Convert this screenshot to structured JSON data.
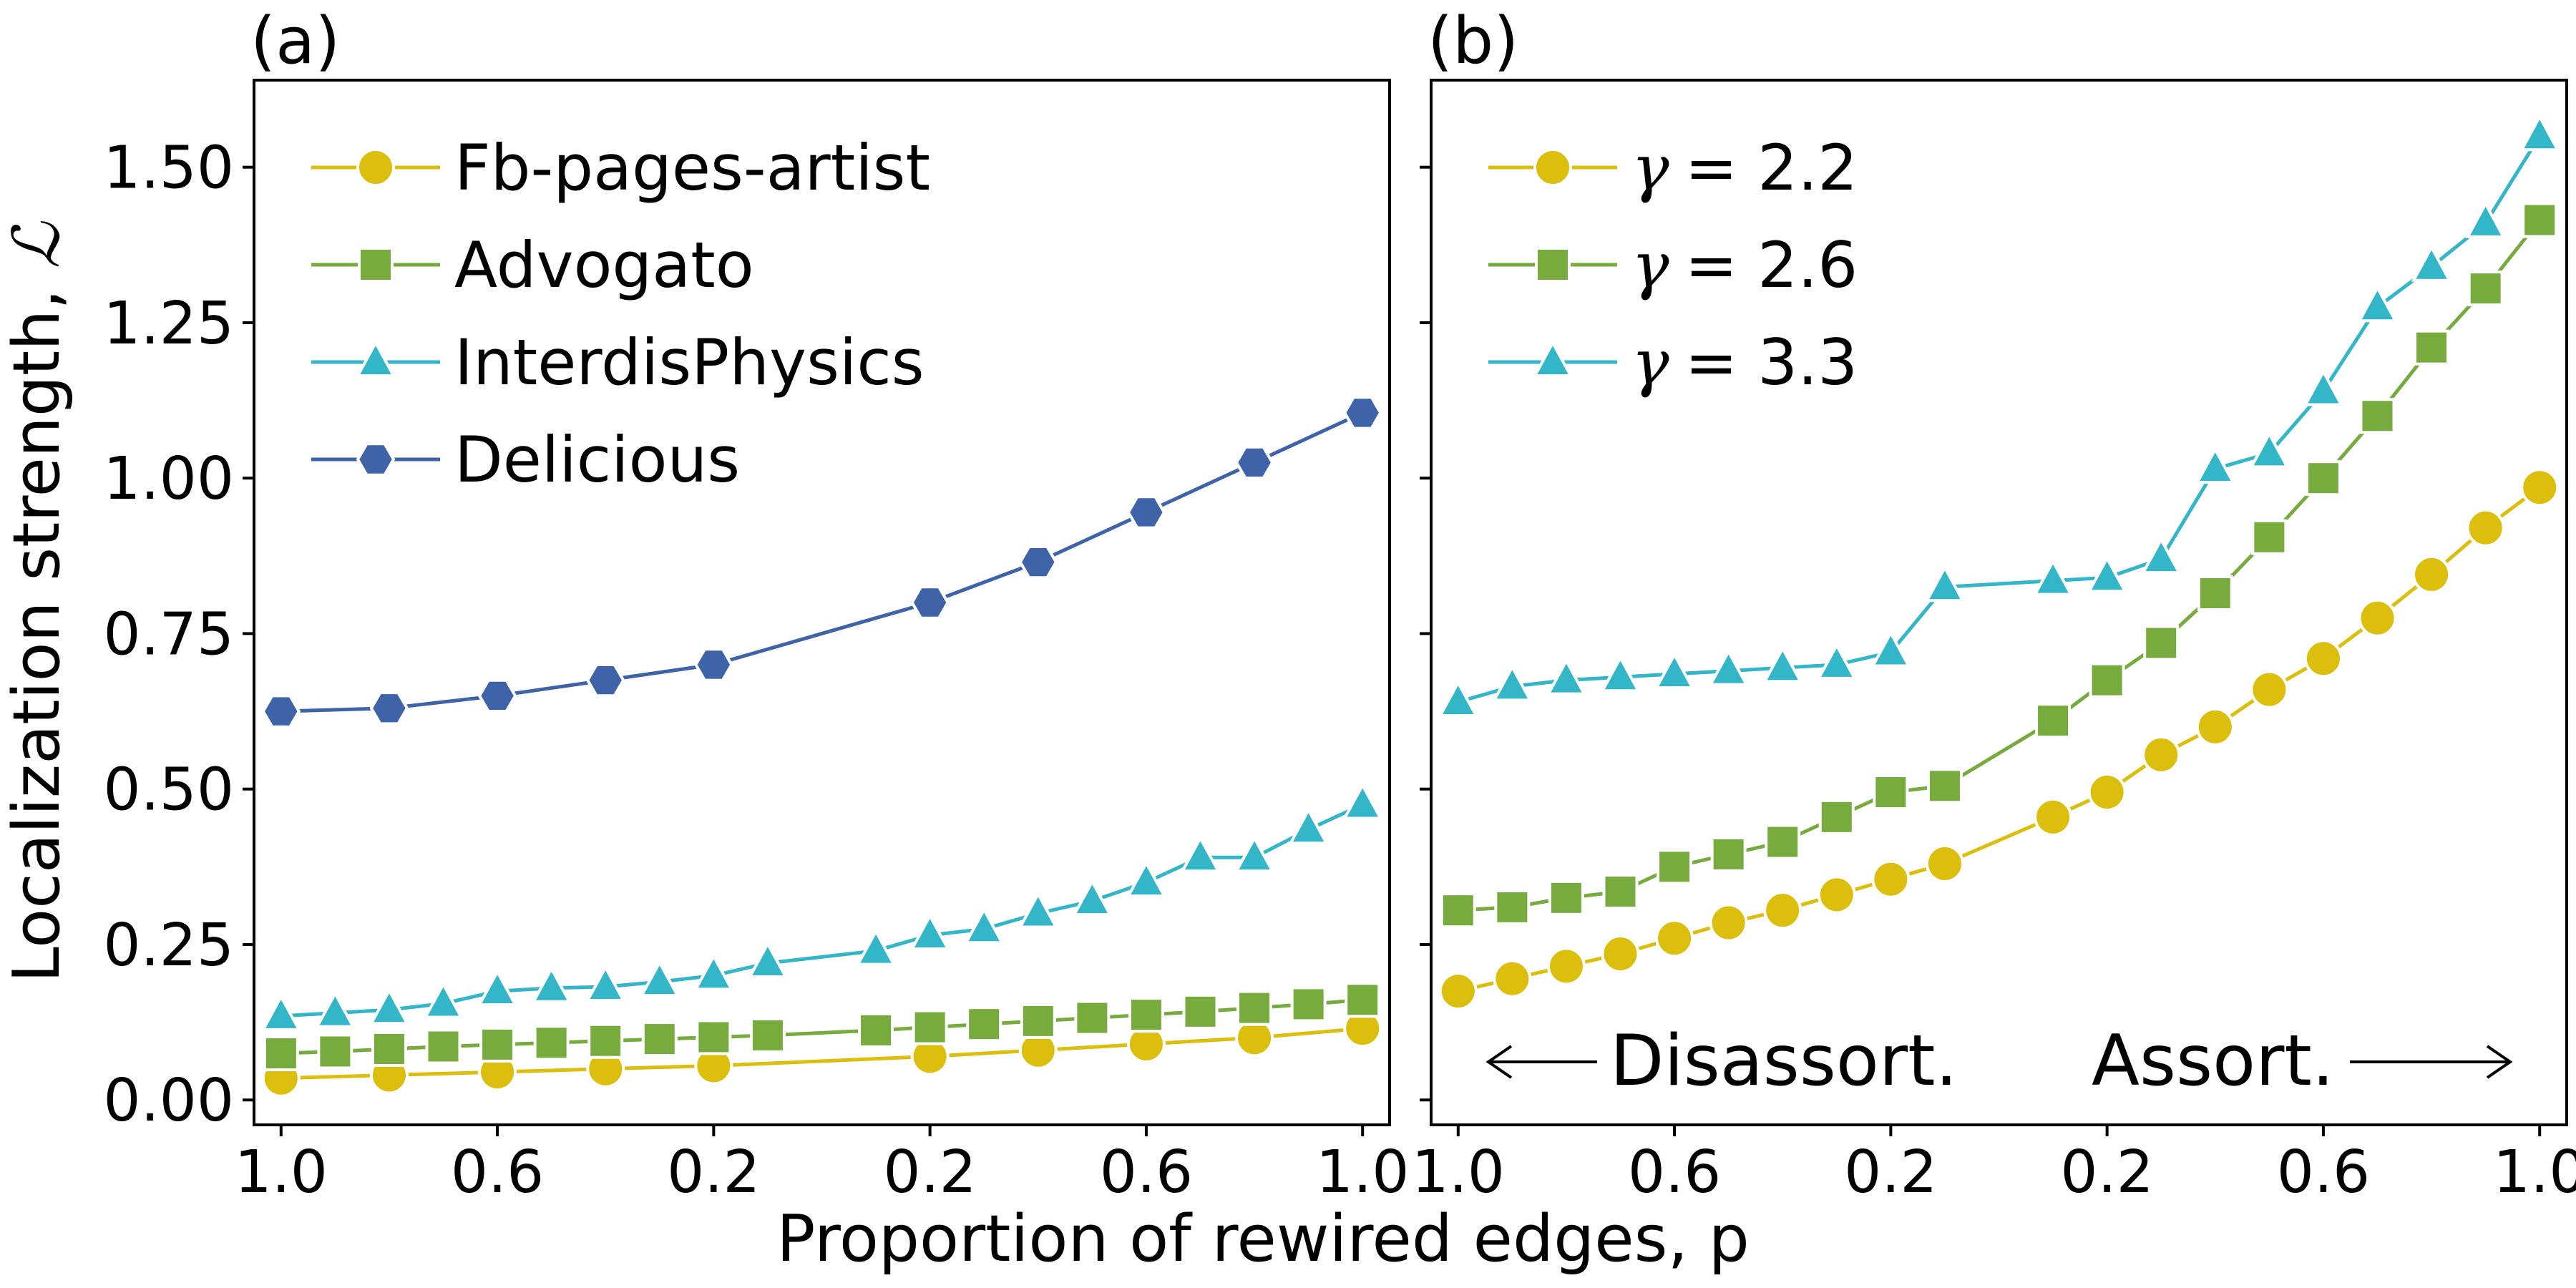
{
  "colors": {
    "yellow": "#dcbf0c",
    "green": "#77ab3d",
    "cyan": "#33b7c8",
    "blue": "#3e63a8"
  },
  "axes": {
    "ylabel": "Localization strength, ",
    "ylabel_symbol": "ℒ",
    "xlabel": "Proportion of rewired edges, p"
  },
  "chart_data": [
    {
      "type": "line",
      "panel": "(a)",
      "xlabel": "Proportion of rewired edges, p",
      "ylabel": "Localization strength, ℒ",
      "ylim": [
        -0.04,
        1.64
      ],
      "xlim": [
        -1.05,
        1.05
      ],
      "x": [
        -1.0,
        -0.8,
        -0.6,
        -0.4,
        -0.2,
        0.2,
        0.4,
        0.6,
        0.8,
        1.0
      ],
      "xtick_values": [
        -1.0,
        -0.6,
        -0.2,
        0.2,
        0.6,
        1.0
      ],
      "xtick_labels": [
        "1.0",
        "0.6",
        "0.2",
        "0.2",
        "0.6",
        "1.0"
      ],
      "ytick_values": [
        0.0,
        0.25,
        0.5,
        0.75,
        1.0,
        1.25,
        1.5
      ],
      "ytick_labels": [
        "0.00",
        "0.25",
        "0.50",
        "0.75",
        "1.00",
        "1.25",
        "1.50"
      ],
      "legend_position": "top-left",
      "series": [
        {
          "name": "Fb-pages-artist",
          "color": "#dcbf0c",
          "marker": "circle",
          "x": [
            -1.0,
            -0.8,
            -0.6,
            -0.4,
            -0.2,
            0.2,
            0.4,
            0.6,
            0.8,
            1.0
          ],
          "values": [
            0.035,
            0.04,
            0.045,
            0.05,
            0.055,
            0.07,
            0.08,
            0.09,
            0.1,
            0.115
          ]
        },
        {
          "name": "Advogato",
          "color": "#77ab3d",
          "marker": "square",
          "x": [
            -1.0,
            -0.9,
            -0.8,
            -0.7,
            -0.6,
            -0.5,
            -0.4,
            -0.3,
            -0.2,
            -0.1,
            0.1,
            0.2,
            0.3,
            0.4,
            0.5,
            0.6,
            0.7,
            0.8,
            0.9,
            1.0
          ],
          "values": [
            0.075,
            0.078,
            0.082,
            0.086,
            0.089,
            0.092,
            0.095,
            0.098,
            0.101,
            0.104,
            0.112,
            0.117,
            0.122,
            0.127,
            0.132,
            0.137,
            0.142,
            0.148,
            0.154,
            0.161
          ]
        },
        {
          "name": "InterdisPhysics",
          "color": "#33b7c8",
          "marker": "triangle",
          "x": [
            -1.0,
            -0.9,
            -0.8,
            -0.7,
            -0.6,
            -0.5,
            -0.4,
            -0.3,
            -0.2,
            -0.1,
            0.1,
            0.2,
            0.3,
            0.4,
            0.5,
            0.6,
            0.7,
            0.8,
            0.9,
            1.0
          ],
          "values": [
            0.135,
            0.14,
            0.145,
            0.155,
            0.175,
            0.18,
            0.182,
            0.19,
            0.2,
            0.22,
            0.24,
            0.265,
            0.275,
            0.3,
            0.32,
            0.35,
            0.39,
            0.39,
            0.435,
            0.475
          ]
        },
        {
          "name": "Delicious",
          "color": "#3e63a8",
          "marker": "hexagon",
          "x": [
            -1.0,
            -0.8,
            -0.6,
            -0.4,
            -0.2,
            0.2,
            0.4,
            0.6,
            0.8,
            1.0
          ],
          "values": [
            0.625,
            0.63,
            0.65,
            0.675,
            0.7,
            0.8,
            0.865,
            0.945,
            1.025,
            1.105
          ]
        }
      ]
    },
    {
      "type": "line",
      "panel": "(b)",
      "xlabel": "Proportion of rewired edges, p",
      "ylim": [
        -0.04,
        1.64
      ],
      "xlim": [
        -1.05,
        1.05
      ],
      "x": [
        -1.0,
        -0.9,
        -0.8,
        -0.7,
        -0.6,
        -0.5,
        -0.4,
        -0.3,
        -0.2,
        -0.1,
        0.1,
        0.2,
        0.3,
        0.4,
        0.5,
        0.6,
        0.7,
        0.8,
        0.9,
        1.0
      ],
      "xtick_values": [
        -1.0,
        -0.6,
        -0.2,
        0.2,
        0.6,
        1.0
      ],
      "xtick_labels": [
        "1.0",
        "0.6",
        "0.2",
        "0.2",
        "0.6",
        "1.0"
      ],
      "legend_position": "top-left",
      "annotations": [
        "Disassort.",
        "Assort."
      ],
      "series": [
        {
          "name": "γ = 2.2",
          "legend_symbol": "γ",
          "legend_value": "= 2.2",
          "color": "#dcbf0c",
          "marker": "circle",
          "x": [
            -1.0,
            -0.9,
            -0.8,
            -0.7,
            -0.6,
            -0.5,
            -0.4,
            -0.3,
            -0.2,
            -0.1,
            0.1,
            0.2,
            0.3,
            0.4,
            0.5,
            0.6,
            0.7,
            0.8,
            0.9,
            1.0
          ],
          "values": [
            0.175,
            0.195,
            0.215,
            0.235,
            0.26,
            0.285,
            0.305,
            0.33,
            0.355,
            0.38,
            0.455,
            0.495,
            0.555,
            0.6,
            0.66,
            0.71,
            0.775,
            0.845,
            0.92,
            0.985
          ]
        },
        {
          "name": "γ = 2.6",
          "legend_symbol": "γ",
          "legend_value": "= 2.6",
          "color": "#77ab3d",
          "marker": "square",
          "x": [
            -1.0,
            -0.9,
            -0.8,
            -0.7,
            -0.6,
            -0.5,
            -0.4,
            -0.3,
            -0.2,
            -0.1,
            0.1,
            0.2,
            0.3,
            0.4,
            0.5,
            0.6,
            0.7,
            0.8,
            0.9,
            1.0
          ],
          "values": [
            0.305,
            0.31,
            0.325,
            0.335,
            0.375,
            0.395,
            0.415,
            0.455,
            0.495,
            0.505,
            0.61,
            0.675,
            0.735,
            0.815,
            0.905,
            1.0,
            1.1,
            1.21,
            1.305,
            1.415
          ]
        },
        {
          "name": "γ = 3.3",
          "legend_symbol": "γ",
          "legend_value": "= 3.3",
          "color": "#33b7c8",
          "marker": "triangle",
          "x": [
            -1.0,
            -0.9,
            -0.8,
            -0.7,
            -0.6,
            -0.5,
            -0.4,
            -0.3,
            -0.2,
            -0.1,
            0.1,
            0.2,
            0.3,
            0.4,
            0.5,
            0.6,
            0.7,
            0.8,
            0.9,
            1.0
          ],
          "values": [
            0.64,
            0.665,
            0.675,
            0.68,
            0.685,
            0.69,
            0.695,
            0.7,
            0.72,
            0.825,
            0.835,
            0.84,
            0.87,
            1.015,
            1.04,
            1.14,
            1.275,
            1.34,
            1.41,
            1.55
          ]
        }
      ]
    }
  ]
}
